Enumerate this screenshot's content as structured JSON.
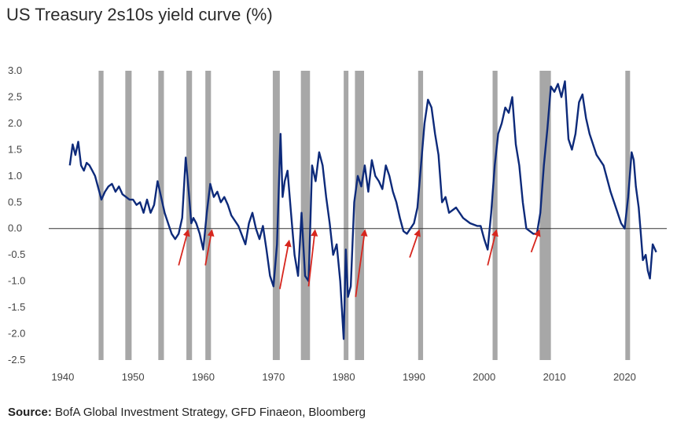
{
  "title": "US Treasury 2s10s yield curve (%)",
  "source": {
    "label": "Source:",
    "text": " BofA Global Investment Strategy, GFD Finaeon, Bloomberg"
  },
  "chart_data": {
    "type": "line",
    "title": "US Treasury 2s10s yield curve (%)",
    "xlabel": "",
    "ylabel": "",
    "xlim": [
      1938,
      2026
    ],
    "ylim": [
      -2.5,
      3.0
    ],
    "x_ticks": [
      1940,
      1950,
      1960,
      1970,
      1980,
      1990,
      2000,
      2010,
      2020
    ],
    "y_ticks": [
      3.0,
      2.5,
      2.0,
      1.5,
      1.0,
      0.5,
      0.0,
      -0.5,
      -1.0,
      -1.5,
      -2.0,
      -2.5
    ],
    "y_tick_labels": [
      "3.0",
      "2.5",
      "2.0",
      "1.5",
      "1.0",
      "0.5",
      "0.0",
      "-0.5",
      "-1.0",
      "-1.5",
      "-2.0",
      "-2.5"
    ],
    "recessions": [
      [
        1945.1,
        1945.8
      ],
      [
        1948.9,
        1949.8
      ],
      [
        1953.6,
        1954.4
      ],
      [
        1957.6,
        1958.4
      ],
      [
        1960.3,
        1961.1
      ],
      [
        1969.9,
        1970.9
      ],
      [
        1973.9,
        1975.2
      ],
      [
        1980.0,
        1980.6
      ],
      [
        1981.6,
        1982.9
      ],
      [
        1990.6,
        1991.3
      ],
      [
        2001.2,
        2001.9
      ],
      [
        2007.9,
        2009.5
      ],
      [
        2020.1,
        2020.4
      ]
    ],
    "arrows": [
      {
        "from": [
          1956.5,
          -0.7
        ],
        "to": [
          1957.8,
          -0.05
        ]
      },
      {
        "from": [
          1960.3,
          -0.7
        ],
        "to": [
          1961.2,
          -0.05
        ]
      },
      {
        "from": [
          1970.9,
          -1.15
        ],
        "to": [
          1972.2,
          -0.25
        ]
      },
      {
        "from": [
          1975.0,
          -1.1
        ],
        "to": [
          1975.9,
          -0.05
        ]
      },
      {
        "from": [
          1981.7,
          -1.3
        ],
        "to": [
          1983.0,
          -0.05
        ]
      },
      {
        "from": [
          1989.4,
          -0.55
        ],
        "to": [
          1990.7,
          -0.05
        ]
      },
      {
        "from": [
          2000.5,
          -0.7
        ],
        "to": [
          2001.7,
          -0.05
        ]
      },
      {
        "from": [
          2006.7,
          -0.45
        ],
        "to": [
          2007.8,
          -0.05
        ]
      }
    ],
    "series": [
      {
        "x": [
          1941.0,
          1941.4,
          1941.8,
          1942.2,
          1942.6,
          1943.0,
          1943.4,
          1943.8,
          1944.2,
          1944.6,
          1945.0,
          1945.5,
          1946.0,
          1946.5,
          1947.0,
          1947.5,
          1948.0,
          1948.5,
          1949.0,
          1949.5,
          1950.0,
          1950.5,
          1951.0,
          1951.5,
          1952.0,
          1952.5,
          1953.0,
          1953.5,
          1954.0,
          1954.5,
          1955.0,
          1955.5,
          1956.0,
          1956.5,
          1957.0,
          1957.5,
          1958.0,
          1958.3,
          1958.6,
          1959.0,
          1959.5,
          1960.0,
          1960.5,
          1961.0,
          1961.5,
          1962.0,
          1962.5,
          1963.0,
          1963.5,
          1964.0,
          1965.0,
          1966.0,
          1966.5,
          1967.0,
          1967.5,
          1968.0,
          1968.5,
          1969.0,
          1969.5,
          1970.0,
          1970.5,
          1971.0,
          1971.3,
          1971.6,
          1972.0,
          1972.5,
          1973.0,
          1973.5,
          1974.0,
          1974.5,
          1975.0,
          1975.5,
          1976.0,
          1976.5,
          1977.0,
          1977.5,
          1978.0,
          1978.5,
          1979.0,
          1979.5,
          1980.0,
          1980.3,
          1980.6,
          1981.0,
          1981.5,
          1982.0,
          1982.5,
          1983.0,
          1983.5,
          1984.0,
          1984.5,
          1985.0,
          1985.5,
          1986.0,
          1986.5,
          1987.0,
          1987.5,
          1988.0,
          1988.5,
          1989.0,
          1989.5,
          1990.0,
          1990.5,
          1991.0,
          1991.5,
          1992.0,
          1992.5,
          1993.0,
          1993.5,
          1994.0,
          1994.5,
          1995.0,
          1996.0,
          1997.0,
          1998.0,
          1999.0,
          1999.5,
          2000.0,
          2000.5,
          2001.0,
          2001.5,
          2002.0,
          2002.5,
          2003.0,
          2003.5,
          2004.0,
          2004.5,
          2005.0,
          2005.5,
          2006.0,
          2007.0,
          2007.5,
          2008.0,
          2008.5,
          2009.0,
          2009.5,
          2010.0,
          2010.5,
          2011.0,
          2011.5,
          2012.0,
          2012.5,
          2013.0,
          2013.5,
          2014.0,
          2014.5,
          2015.0,
          2016.0,
          2017.0,
          2018.0,
          2018.5,
          2019.0,
          2019.5,
          2020.0,
          2020.5,
          2021.0,
          2021.3,
          2021.6,
          2022.0,
          2022.3,
          2022.6,
          2023.0,
          2023.3,
          2023.6,
          2024.0,
          2024.5
        ],
        "y": [
          1.2,
          1.6,
          1.4,
          1.65,
          1.2,
          1.1,
          1.25,
          1.2,
          1.1,
          1.0,
          0.8,
          0.55,
          0.7,
          0.8,
          0.85,
          0.7,
          0.8,
          0.65,
          0.6,
          0.55,
          0.55,
          0.45,
          0.5,
          0.3,
          0.55,
          0.3,
          0.45,
          0.9,
          0.6,
          0.3,
          0.1,
          -0.1,
          -0.2,
          -0.1,
          0.2,
          1.35,
          0.6,
          0.1,
          0.2,
          0.1,
          -0.1,
          -0.4,
          0.3,
          0.85,
          0.6,
          0.7,
          0.5,
          0.6,
          0.45,
          0.25,
          0.05,
          -0.3,
          0.1,
          0.3,
          0.0,
          -0.2,
          0.05,
          -0.4,
          -0.9,
          -1.1,
          -0.3,
          1.8,
          0.6,
          0.9,
          1.1,
          0.3,
          -0.5,
          -0.9,
          0.3,
          -0.9,
          -1.0,
          1.2,
          0.9,
          1.45,
          1.2,
          0.6,
          0.1,
          -0.5,
          -0.3,
          -1.0,
          -2.1,
          -0.4,
          -1.3,
          -1.1,
          0.5,
          1.0,
          0.8,
          1.2,
          0.7,
          1.3,
          1.0,
          0.9,
          0.75,
          1.2,
          1.0,
          0.7,
          0.5,
          0.2,
          -0.05,
          -0.1,
          0.0,
          0.1,
          0.4,
          1.2,
          2.0,
          2.45,
          2.3,
          1.8,
          1.4,
          0.5,
          0.6,
          0.3,
          0.4,
          0.2,
          0.1,
          0.05,
          0.05,
          -0.2,
          -0.4,
          0.3,
          1.2,
          1.8,
          2.0,
          2.3,
          2.2,
          2.5,
          1.6,
          1.2,
          0.5,
          0.0,
          -0.1,
          -0.1,
          0.3,
          1.2,
          1.9,
          2.7,
          2.6,
          2.75,
          2.5,
          2.8,
          1.7,
          1.5,
          1.8,
          2.4,
          2.55,
          2.1,
          1.8,
          1.4,
          1.2,
          0.7,
          0.5,
          0.3,
          0.1,
          0.0,
          0.6,
          1.45,
          1.3,
          0.8,
          0.4,
          -0.1,
          -0.6,
          -0.5,
          -0.8,
          -0.95,
          -0.3,
          -0.45
        ]
      }
    ]
  }
}
